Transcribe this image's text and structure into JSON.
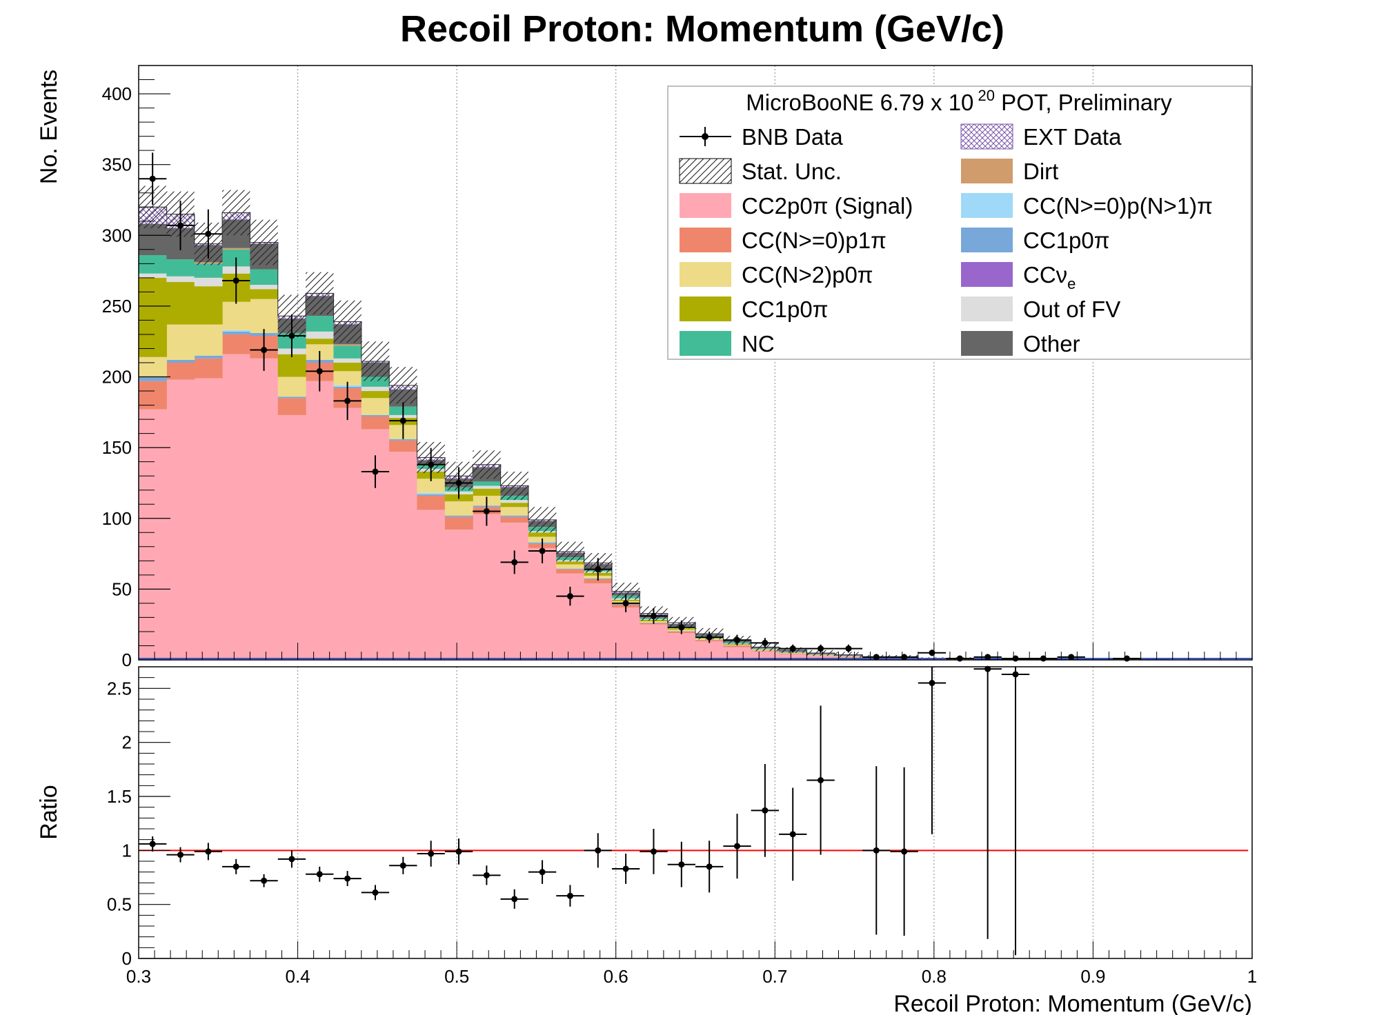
{
  "chart_data": [
    {
      "type": "stacked-histogram",
      "title": "Recoil Proton: Momentum (GeV/c)",
      "xlabel": "",
      "ylabel": "No. Events",
      "xlim": [
        0.3,
        1.0
      ],
      "ylim": [
        0,
        420
      ],
      "x_ticks": [
        "0.3",
        "0.4",
        "0.5",
        "0.6",
        "0.7",
        "0.8",
        "0.9",
        "1"
      ],
      "y_ticks": [
        "0",
        "50",
        "100",
        "150",
        "200",
        "250",
        "300",
        "350",
        "400"
      ],
      "grid": "vertical dotted",
      "legend_position": "top-right",
      "legend_header": "MicroBooNE 6.79 x 10",
      "legend_header_exp": "20",
      "legend_header_tail": " POT, Preliminary",
      "legend_left": [
        "BNB Data",
        "Stat. Unc.",
        "CC2p0π (Signal)",
        "CC(N>=0)p1π",
        "CC(N>2)p0π",
        "CC1p0π",
        "NC"
      ],
      "legend_right": [
        "EXT Data",
        "Dirt",
        "CC(N>=0)p(N>1)π",
        "CC1p0π",
        "CCν",
        "Out of FV",
        "Other"
      ],
      "legend_right_sub": "e",
      "bin_edges": [
        0.3,
        0.3175,
        0.335,
        0.3525,
        0.37,
        0.3875,
        0.405,
        0.4225,
        0.44,
        0.4575,
        0.475,
        0.4925,
        0.51,
        0.5275,
        0.545,
        0.5625,
        0.58,
        0.5975,
        0.615,
        0.6325,
        0.65,
        0.6675,
        0.685,
        0.7025,
        0.72,
        0.7375,
        0.755,
        0.7725,
        0.79,
        0.8075,
        0.825,
        0.8425,
        0.86,
        0.8775,
        0.895,
        0.9125,
        0.93,
        0.9475,
        0.965,
        0.9825,
        1.0
      ],
      "series": [
        {
          "name": "CC2p0π (Signal)",
          "color": "#ffa8b4",
          "values": [
            177,
            198,
            199,
            216,
            213,
            173,
            197,
            178,
            163,
            147,
            106,
            92,
            103,
            97,
            79,
            61,
            54,
            37,
            25,
            19,
            13,
            9,
            6,
            4,
            3,
            2,
            1,
            1,
            0.5,
            0.5,
            0.3,
            0.3,
            0.2,
            0.2,
            0.2,
            0.1,
            0.1,
            0,
            0,
            0
          ]
        },
        {
          "name": "CC(N>=0)p1π",
          "color": "#ef866c",
          "values": [
            20,
            12,
            14,
            14,
            16,
            12,
            13,
            14,
            9,
            8,
            10,
            9,
            5,
            4,
            3,
            3,
            3,
            2,
            1,
            1,
            1,
            1,
            0.5,
            0.5,
            0.3,
            0.3,
            0.2,
            0.2,
            0,
            0,
            0,
            0,
            0,
            0,
            0,
            0,
            0,
            0,
            0,
            0
          ]
        },
        {
          "name": "CC1p0π",
          "color": "#77a8d9",
          "values": [
            3,
            2,
            2,
            2,
            2,
            1,
            2,
            1,
            1,
            1,
            1,
            1,
            1,
            1,
            1,
            0.5,
            0.5,
            0.5,
            0.3,
            0.3,
            0.2,
            0.2,
            0.1,
            0.1,
            0,
            0,
            0,
            0,
            0,
            0,
            0,
            0,
            0,
            0,
            0,
            0,
            0,
            0,
            0,
            0
          ]
        },
        {
          "name": "CC(N>=0)p(N>1)π",
          "color": "#9ed9f7",
          "values": [
            0,
            0,
            0,
            1,
            0,
            0,
            0,
            1,
            0,
            0,
            1,
            0,
            0,
            0,
            0,
            0,
            0,
            0,
            0,
            0,
            0,
            0,
            0,
            0,
            0,
            0,
            0,
            0,
            0,
            0,
            0,
            0,
            0,
            0,
            0,
            0,
            0,
            0,
            0,
            0
          ]
        },
        {
          "name": "CC(N>2)p0π",
          "color": "#eddb88",
          "values": [
            14,
            25,
            22,
            20,
            24,
            14,
            11,
            10,
            12,
            10,
            10,
            10,
            7,
            6,
            4,
            3,
            2,
            2,
            1,
            1,
            1,
            0.5,
            0.5,
            0.3,
            0.2,
            0.2,
            0.1,
            0.1,
            0,
            0,
            0,
            0,
            0,
            0,
            0,
            0,
            0,
            0,
            0,
            0
          ]
        },
        {
          "name": "CC1p0π",
          "color": "#adac00",
          "values": [
            56,
            30,
            27,
            20,
            7,
            16,
            4,
            6,
            5,
            5,
            5,
            5,
            5,
            3,
            3,
            2,
            2,
            1,
            1,
            1,
            0.5,
            0.5,
            0.3,
            0.3,
            0.2,
            0.1,
            0.1,
            0,
            0,
            0,
            0,
            0,
            0,
            0,
            0,
            0,
            0,
            0,
            0,
            0
          ]
        },
        {
          "name": "CCν",
          "color": "#9966cc",
          "values": [
            0,
            0,
            0,
            0,
            0,
            0,
            0,
            0,
            0,
            0,
            0,
            0,
            0,
            0,
            0,
            0,
            0,
            0,
            0,
            0,
            0,
            0,
            0,
            0,
            0,
            0,
            0,
            0,
            0,
            0,
            0,
            0,
            0,
            0,
            0,
            0,
            0,
            0,
            0,
            0
          ]
        },
        {
          "name": "Out of FV",
          "color": "#dddddd",
          "values": [
            3,
            4,
            6,
            5,
            3,
            4,
            5,
            3,
            3,
            2,
            2,
            2,
            2,
            2,
            1,
            1,
            1,
            1,
            0.5,
            0.5,
            0.3,
            0.3,
            0.2,
            0.2,
            0.1,
            0.1,
            0,
            0,
            0,
            0,
            0,
            0,
            0,
            0,
            0,
            0,
            0,
            0,
            0,
            0
          ]
        },
        {
          "name": "NC",
          "color": "#42bc97",
          "values": [
            13,
            12,
            10,
            12,
            11,
            11,
            11,
            9,
            7,
            6,
            3,
            3,
            3,
            3,
            3,
            2,
            2,
            2,
            1,
            1,
            1,
            1,
            0.5,
            0.5,
            0.3,
            0.3,
            0.2,
            0.2,
            0.1,
            0.1,
            0,
            0,
            0,
            0,
            0,
            0,
            0,
            0,
            0,
            0,
            0
          ]
        },
        {
          "name": "Dirt",
          "color": "#d09c6c",
          "values": [
            0,
            0,
            1,
            1,
            0,
            0,
            0,
            1,
            0,
            0,
            0,
            0,
            0,
            0,
            0,
            0,
            0,
            0,
            0,
            0,
            0,
            0,
            0,
            0,
            0,
            0,
            0,
            0,
            0,
            0,
            0,
            0,
            0,
            0,
            0,
            0,
            0,
            0,
            0,
            0
          ]
        },
        {
          "name": "Other",
          "color": "#666666",
          "values": [
            22,
            22,
            12,
            20,
            18,
            10,
            14,
            14,
            10,
            12,
            3,
            6,
            10,
            6,
            4,
            3,
            3,
            2,
            2,
            1.5,
            1,
            1,
            0.5,
            0.5,
            0.5,
            0.3,
            0.2,
            0.2,
            0.1,
            0.1,
            0,
            0,
            0,
            0,
            0,
            0,
            0,
            0,
            0,
            0,
            0
          ]
        },
        {
          "name": "EXT Data",
          "color": "#ffffff",
          "values": [
            12,
            10,
            1,
            5,
            1,
            2,
            2,
            2,
            1,
            3,
            2,
            2,
            2,
            1,
            1,
            1,
            1,
            1,
            1,
            1,
            0.5,
            0.5,
            0.5,
            0.5,
            0.3,
            0.3,
            0.2,
            0.2,
            0.1,
            0.1,
            0,
            0,
            0,
            0,
            0,
            0,
            0,
            0,
            0,
            0,
            0
          ]
        }
      ],
      "stat_unc": [
        15,
        16,
        15,
        16,
        16,
        15,
        15,
        15,
        14,
        13,
        11,
        10,
        10,
        10,
        9,
        7,
        7,
        6,
        5,
        4,
        4,
        3,
        3,
        2,
        2,
        2,
        1.5,
        1.5,
        1,
        1,
        1,
        1,
        0.5,
        0.5,
        0.5,
        0.3,
        0.3,
        0.3,
        0.2,
        0.2
      ],
      "data_points": {
        "name": "BNB Data",
        "x": [
          0.30875,
          0.32625,
          0.34375,
          0.36125,
          0.37875,
          0.39625,
          0.41375,
          0.43125,
          0.44875,
          0.46625,
          0.48375,
          0.50125,
          0.51875,
          0.53625,
          0.55375,
          0.57125,
          0.58875,
          0.60625,
          0.62375,
          0.64125,
          0.65875,
          0.67625,
          0.69375,
          0.71125,
          0.72875,
          0.74625,
          0.76375,
          0.78125,
          0.79875,
          0.81625,
          0.83375,
          0.85125,
          0.86875,
          0.88625,
          0.92125
        ],
        "y": [
          340,
          307,
          301,
          268,
          219,
          229,
          204,
          183,
          133,
          169,
          138,
          125,
          105,
          69,
          77,
          45,
          64,
          40,
          31,
          23,
          16,
          14,
          12,
          8,
          8,
          8,
          2,
          2,
          5,
          1,
          2,
          1,
          1,
          2,
          1
        ]
      }
    },
    {
      "type": "scatter",
      "title": "",
      "xlabel": "Recoil Proton: Momentum (GeV/c)",
      "ylabel": "Ratio",
      "xlim": [
        0.3,
        1.0
      ],
      "ylim": [
        0,
        2.7
      ],
      "x_ticks": [
        "0.3",
        "0.4",
        "0.5",
        "0.6",
        "0.7",
        "0.8",
        "0.9",
        "1"
      ],
      "y_ticks": [
        "0",
        "0.5",
        "1",
        "1.5",
        "2",
        "2.5"
      ],
      "grid": "vertical dotted",
      "reference_line": 1.0,
      "reference_color": "#ff0000",
      "points": {
        "x": [
          0.30875,
          0.32625,
          0.34375,
          0.36125,
          0.37875,
          0.39625,
          0.41375,
          0.43125,
          0.44875,
          0.46625,
          0.48375,
          0.50125,
          0.51875,
          0.53625,
          0.55375,
          0.57125,
          0.58875,
          0.60625,
          0.62375,
          0.64125,
          0.65875,
          0.67625,
          0.69375,
          0.71125,
          0.72875,
          0.76375,
          0.78125,
          0.79875,
          0.83375,
          0.85125
        ],
        "y": [
          1.06,
          0.96,
          0.99,
          0.85,
          0.72,
          0.92,
          0.78,
          0.74,
          0.61,
          0.86,
          0.97,
          0.99,
          0.77,
          0.55,
          0.8,
          0.58,
          1.0,
          0.83,
          0.99,
          0.87,
          0.85,
          1.04,
          1.37,
          1.15,
          1.65,
          1.0,
          0.99,
          2.55,
          2.68,
          2.63
        ],
        "err": [
          0.07,
          0.07,
          0.08,
          0.07,
          0.06,
          0.08,
          0.07,
          0.07,
          0.07,
          0.08,
          0.12,
          0.12,
          0.09,
          0.09,
          0.11,
          0.1,
          0.16,
          0.14,
          0.21,
          0.21,
          0.24,
          0.3,
          0.43,
          0.43,
          0.69,
          0.78,
          0.78,
          1.4,
          2.5,
          2.6
        ]
      }
    }
  ]
}
